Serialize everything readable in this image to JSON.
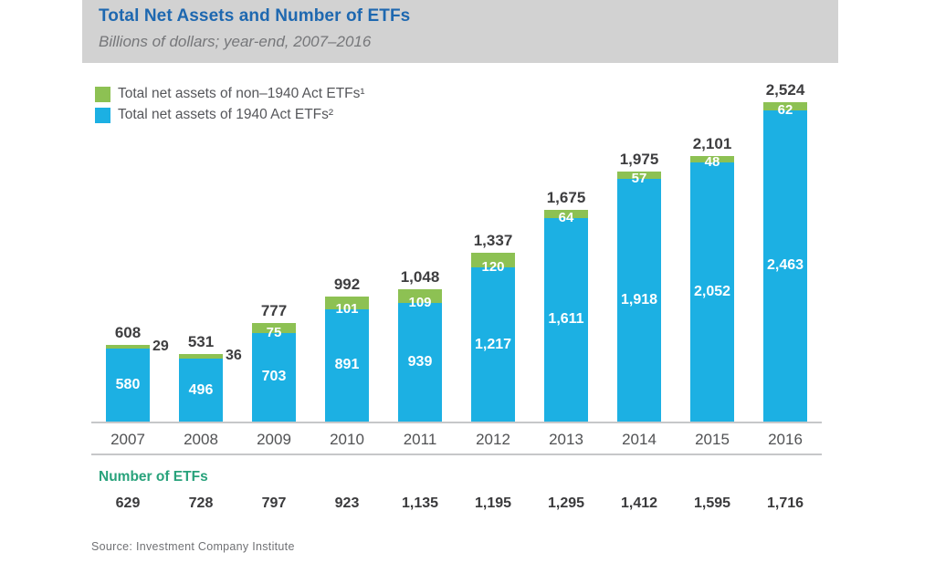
{
  "header": {
    "title": "Total Net Assets and Number of ETFs",
    "subtitle": "Billions of dollars; year-end, 2007–2016"
  },
  "colors": {
    "green": "#8dc153",
    "blue": "#1cb0e3",
    "header_bg": "#d2d2d2",
    "title_blue": "#1e68b0",
    "etf_label_teal": "#28a27b"
  },
  "legend": [
    {
      "swatch": "green",
      "label": "Total net assets of non–1940 Act ETFs¹"
    },
    {
      "swatch": "blue",
      "label": "Total net assets of 1940 Act ETFs²"
    }
  ],
  "chart_data": {
    "type": "bar",
    "stacked": true,
    "title": "Total Net Assets and Number of ETFs",
    "subtitle": "Billions of dollars; year-end, 2007-2016",
    "xlabel": "",
    "ylabel": "Billions of dollars",
    "ylim": [
      0,
      2700
    ],
    "grid": false,
    "legend_position": "top-left",
    "categories": [
      "2007",
      "2008",
      "2009",
      "2010",
      "2011",
      "2012",
      "2013",
      "2014",
      "2015",
      "2016"
    ],
    "series": [
      {
        "name": "Total net assets of 1940 Act ETFs",
        "color_key": "blue",
        "values": [
          580,
          496,
          703,
          891,
          939,
          1217,
          1611,
          1918,
          2052,
          2463
        ]
      },
      {
        "name": "Total net assets of non-1940 Act ETFs",
        "color_key": "green",
        "values": [
          29,
          36,
          75,
          101,
          109,
          120,
          64,
          57,
          48,
          62
        ],
        "label_outside": [
          true,
          true,
          false,
          false,
          false,
          false,
          false,
          false,
          false,
          false
        ]
      }
    ],
    "totals": [
      608,
      531,
      777,
      992,
      1048,
      1337,
      1675,
      1975,
      2101,
      2524
    ]
  },
  "etf_counts": {
    "label": "Number of ETFs",
    "values": [
      629,
      728,
      797,
      923,
      1135,
      1195,
      1295,
      1412,
      1595,
      1716
    ]
  },
  "source": "Source: Investment Company Institute"
}
